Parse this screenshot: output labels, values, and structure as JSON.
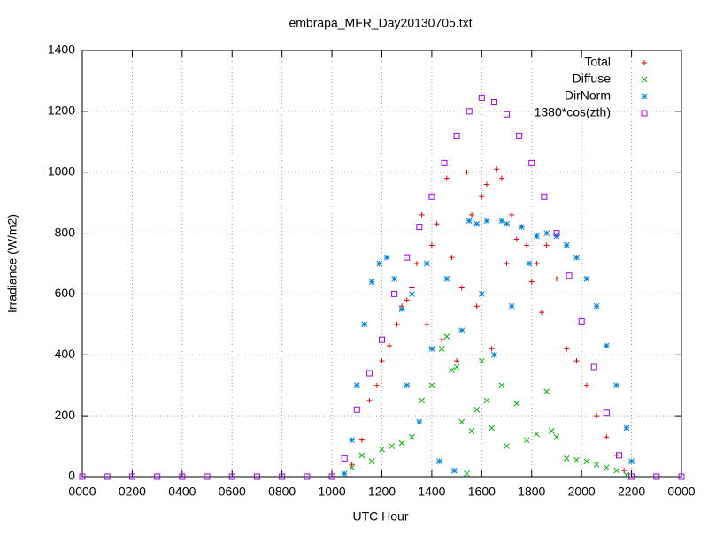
{
  "chart_data": {
    "type": "scatter",
    "title": "embrapa_MFR_Day20130705.txt",
    "x_label": "UTC Hour",
    "y_label": "Irradiance (W/m2)",
    "xlim": [
      0,
      24
    ],
    "ylim": [
      0,
      1400
    ],
    "xticks": [
      {
        "value": 0,
        "label": "0000"
      },
      {
        "value": 2,
        "label": "0200"
      },
      {
        "value": 4,
        "label": "0400"
      },
      {
        "value": 6,
        "label": "0600"
      },
      {
        "value": 8,
        "label": "0800"
      },
      {
        "value": 10,
        "label": "1000"
      },
      {
        "value": 12,
        "label": "1200"
      },
      {
        "value": 14,
        "label": "1400"
      },
      {
        "value": 16,
        "label": "1600"
      },
      {
        "value": 18,
        "label": "1800"
      },
      {
        "value": 20,
        "label": "2000"
      },
      {
        "value": 22,
        "label": "2200"
      },
      {
        "value": 24,
        "label": "0000"
      }
    ],
    "yticks": [
      0,
      200,
      400,
      600,
      800,
      1000,
      1200,
      1400
    ],
    "grid": true,
    "legend": "top-right",
    "series": [
      {
        "name": "Total",
        "color": "#e00000",
        "marker": "plus",
        "x": [
          10.8,
          11.2,
          11.5,
          11.8,
          12.0,
          12.3,
          12.6,
          12.8,
          13.0,
          13.2,
          13.4,
          13.6,
          13.8,
          14.0,
          14.2,
          14.4,
          14.6,
          14.8,
          15.0,
          15.2,
          15.4,
          15.6,
          15.8,
          16.0,
          16.2,
          16.4,
          16.6,
          16.8,
          17.0,
          17.2,
          17.4,
          17.6,
          17.8,
          18.0,
          18.2,
          18.4,
          18.6,
          19.0,
          19.4,
          19.8,
          20.2,
          20.6,
          21.0,
          21.4,
          21.7
        ],
        "values": [
          40,
          120,
          250,
          300,
          380,
          430,
          500,
          560,
          580,
          620,
          700,
          860,
          500,
          760,
          830,
          450,
          980,
          720,
          380,
          620,
          1000,
          860,
          560,
          920,
          960,
          420,
          1010,
          980,
          700,
          860,
          780,
          820,
          760,
          640,
          700,
          540,
          760,
          650,
          420,
          380,
          300,
          200,
          130,
          70,
          20
        ]
      },
      {
        "name": "Diffuse",
        "color": "#00b000",
        "marker": "cross",
        "x": [
          10.8,
          11.2,
          11.6,
          12.0,
          12.4,
          12.8,
          13.2,
          13.6,
          14.0,
          14.4,
          14.6,
          14.8,
          15.0,
          15.2,
          15.4,
          15.6,
          15.8,
          16.0,
          16.2,
          16.4,
          16.8,
          17.0,
          17.4,
          17.8,
          18.2,
          18.6,
          18.8,
          19.0,
          19.4,
          19.8,
          20.2,
          20.6,
          21.0,
          21.4,
          21.8
        ],
        "values": [
          30,
          70,
          50,
          90,
          100,
          110,
          130,
          250,
          300,
          420,
          460,
          350,
          360,
          180,
          10,
          150,
          220,
          380,
          250,
          160,
          300,
          100,
          240,
          120,
          140,
          280,
          150,
          130,
          60,
          55,
          50,
          40,
          30,
          20,
          5
        ]
      },
      {
        "name": "DirNorm",
        "color": "#0080e0",
        "marker": "star",
        "x": [
          10.5,
          10.8,
          11.0,
          11.3,
          11.6,
          11.9,
          12.2,
          12.5,
          12.8,
          13.0,
          13.2,
          13.5,
          13.8,
          14.0,
          14.3,
          14.6,
          14.9,
          15.2,
          15.5,
          15.8,
          16.0,
          16.2,
          16.5,
          16.8,
          17.0,
          17.2,
          17.6,
          17.9,
          18.2,
          18.6,
          19.0,
          19.4,
          19.8,
          20.2,
          20.6,
          21.0,
          21.4,
          21.8,
          22.0
        ],
        "values": [
          10,
          120,
          300,
          500,
          640,
          700,
          720,
          650,
          550,
          300,
          600,
          180,
          700,
          420,
          50,
          650,
          20,
          480,
          840,
          830,
          600,
          840,
          400,
          840,
          830,
          560,
          820,
          700,
          790,
          800,
          790,
          760,
          720,
          650,
          560,
          430,
          300,
          160,
          50
        ]
      },
      {
        "name": "1380*cos(zth)",
        "color": "#a000e0",
        "marker": "square",
        "x": [
          0,
          1,
          2,
          3,
          4,
          5,
          6,
          7,
          8,
          9,
          10,
          10.5,
          11,
          11.5,
          12,
          12.5,
          13,
          13.5,
          14,
          14.5,
          15,
          15.5,
          16,
          16.5,
          17,
          17.5,
          18,
          18.5,
          19,
          19.5,
          20,
          20.5,
          21,
          21.5,
          22,
          23,
          24
        ],
        "values": [
          0,
          0,
          0,
          0,
          0,
          0,
          0,
          0,
          0,
          0,
          0,
          60,
          220,
          340,
          450,
          600,
          720,
          820,
          920,
          1030,
          1120,
          1200,
          1245,
          1230,
          1190,
          1120,
          1030,
          920,
          800,
          660,
          510,
          360,
          210,
          70,
          0,
          0,
          0
        ]
      }
    ]
  }
}
